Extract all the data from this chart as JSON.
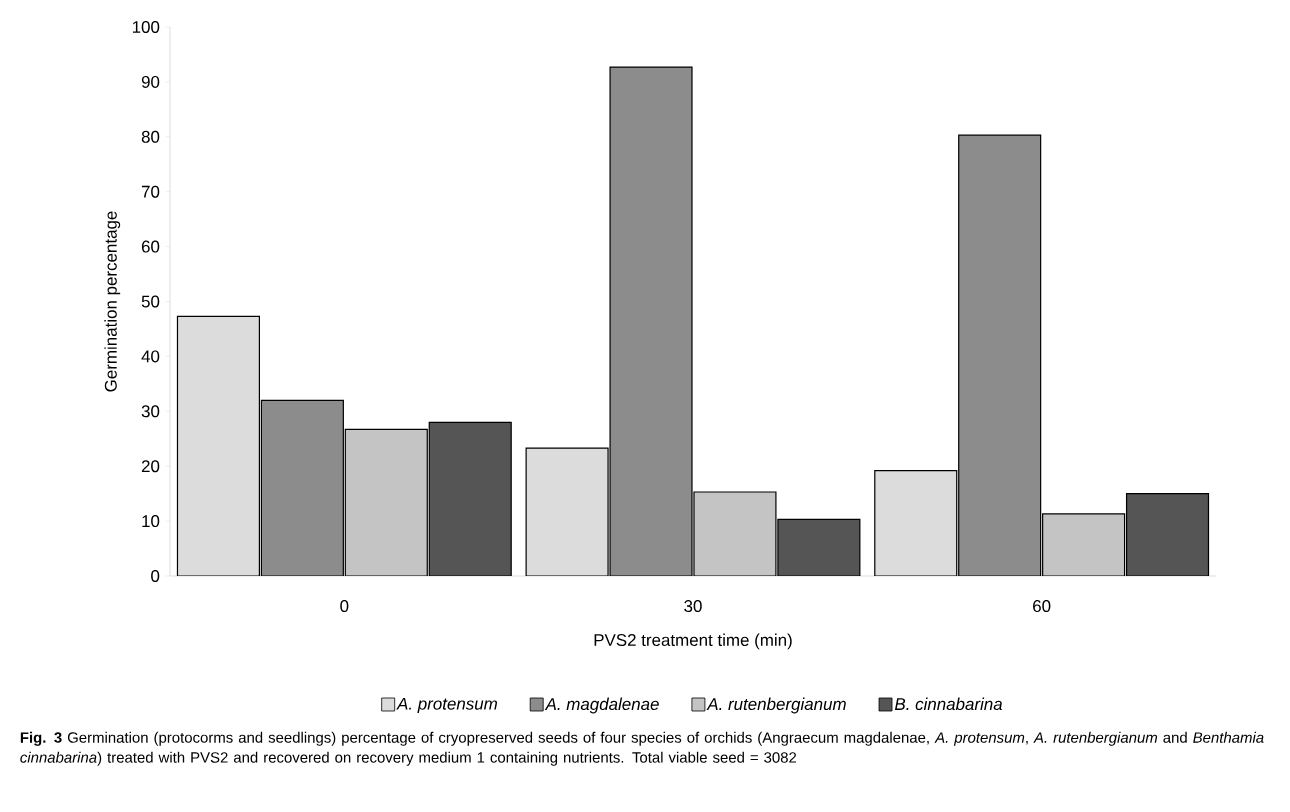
{
  "chart_data": {
    "type": "bar",
    "xlabel": "PVS2 treatment time (min)",
    "ylabel": "Germination percentage",
    "categories": [
      "0",
      "30",
      "60"
    ],
    "series": [
      {
        "name": "A. protensum",
        "color": "#dcdcdc",
        "values": [
          47.3,
          23.3,
          19.2
        ]
      },
      {
        "name": "A. magdalenae",
        "color": "#8c8c8c",
        "values": [
          32,
          92.7,
          80.3
        ]
      },
      {
        "name": "A. rutenbergianum",
        "color": "#c4c4c4",
        "values": [
          26.7,
          15.3,
          11.3
        ]
      },
      {
        "name": "B. cinnabarina",
        "color": "#555555",
        "values": [
          28,
          10.3,
          15
        ]
      }
    ],
    "ylim": [
      0,
      100
    ],
    "yticks": [
      0,
      10,
      20,
      30,
      40,
      50,
      60,
      70,
      80,
      90,
      100
    ],
    "grid": false,
    "legend": "bottom",
    "annotations": [
      "**Fig. 3**  Germination (protocorms and seedlings) percentage of cryopreserved seeds of four species of orchids (Angraecum magdalenae, *A. protensum*, *A. rutenbergianum* and *Benthamia cinnabarina*) treated with PVS2 and recovered on recovery medium 1 containing nutrients. Total viable seed = 3082"
    ]
  }
}
